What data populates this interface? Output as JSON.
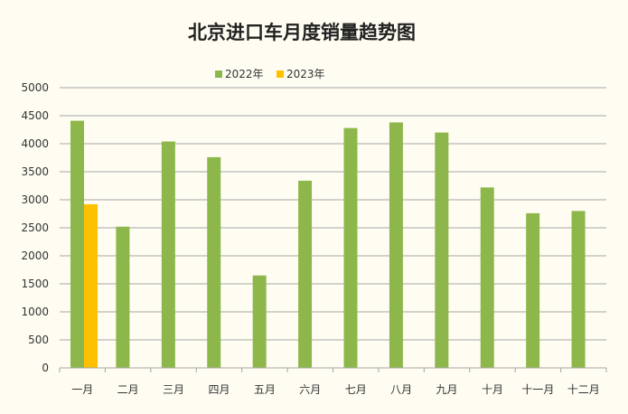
{
  "chart_data": {
    "type": "bar",
    "title": "北京进口车月度销量趋势图",
    "categories": [
      "一月",
      "二月",
      "三月",
      "四月",
      "五月",
      "六月",
      "七月",
      "八月",
      "九月",
      "十月",
      "十一月",
      "十二月"
    ],
    "series": [
      {
        "name": "2022年",
        "color": "#8db74a",
        "values": [
          4410,
          2520,
          4040,
          3760,
          1650,
          3340,
          4280,
          4380,
          4200,
          3220,
          2760,
          2800
        ]
      },
      {
        "name": "2023年",
        "color": "#ffc000",
        "values": [
          2920,
          null,
          null,
          null,
          null,
          null,
          null,
          null,
          null,
          null,
          null,
          null
        ]
      }
    ],
    "yticks": [
      "0",
      "500",
      "1000",
      "1500",
      "2000",
      "2500",
      "3000",
      "3500",
      "4000",
      "4500",
      "5000"
    ],
    "ylim": [
      0,
      5000
    ],
    "xlabel": "",
    "ylabel": "",
    "grid": true,
    "legend_position": "top-center",
    "gridline_color": "#a6a6a6",
    "axis_color": "#a6a6a6"
  }
}
